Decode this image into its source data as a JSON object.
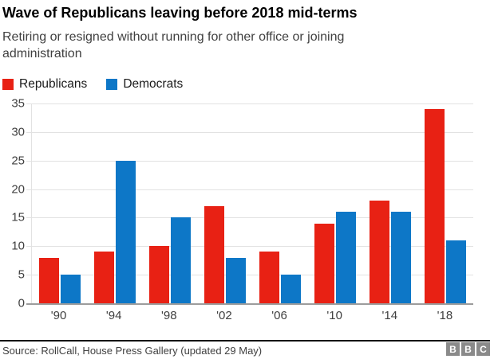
{
  "header": {
    "title": "Wave of Republicans leaving before 2018 mid-terms",
    "subtitle": "Retiring or resigned without running for other office or joining administration"
  },
  "legend": {
    "items": [
      {
        "label": "Republicans",
        "color": "#e82114"
      },
      {
        "label": "Democrats",
        "color": "#0d77c7"
      }
    ]
  },
  "chart_data": {
    "type": "bar",
    "title": "Wave of Republicans leaving before 2018 mid-terms",
    "subtitle": "Retiring or resigned without running for other office or joining administration",
    "categories": [
      "'90",
      "'94",
      "'98",
      "'02",
      "'06",
      "'10",
      "'14",
      "'18"
    ],
    "series": [
      {
        "name": "Republicans",
        "color": "#e82114",
        "values": [
          8,
          9,
          10,
          17,
          9,
          14,
          18,
          34
        ]
      },
      {
        "name": "Democrats",
        "color": "#0d77c7",
        "values": [
          5,
          25,
          15,
          8,
          5,
          16,
          16,
          11
        ]
      }
    ],
    "xlabel": "",
    "ylabel": "",
    "ylim": [
      0,
      35
    ],
    "ytick_step": 5,
    "grid": true,
    "legend_position": "top-left"
  },
  "footer": {
    "source": "Source: RollCall, House Press Gallery (updated 29 May)",
    "logo_letters": [
      "B",
      "B",
      "C"
    ]
  },
  "colors": {
    "background": "#ffffff",
    "title_text": "#000000",
    "subtitle_text": "#404040",
    "axis_text": "#404040",
    "gridline": "#e2e2e2",
    "baseline": "#9c9c9c",
    "footer_rule": "#000000",
    "source_text": "#404040",
    "bbc_block": "#8a8a8a"
  }
}
